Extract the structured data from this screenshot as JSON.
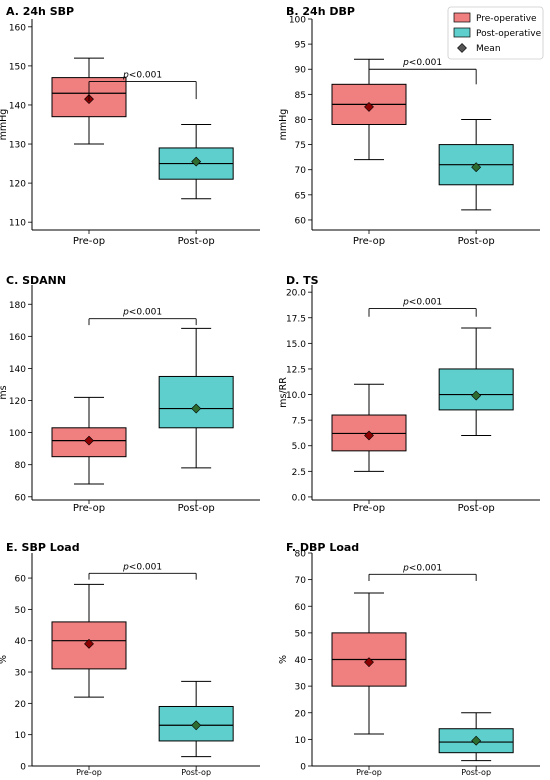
{
  "colors": {
    "pre": "#F08080",
    "post": "#5ECFCC",
    "pre_mean": "#8B0000",
    "post_mean": "#2E6B2E",
    "legend_mean": "#555555",
    "axis": "#000000"
  },
  "legend": {
    "items": [
      {
        "label": "Pre-operative"
      },
      {
        "label": "Post-operative"
      },
      {
        "label": "Mean"
      }
    ]
  },
  "chart_data": [
    {
      "panel": "A",
      "title": "A. 24h SBP",
      "type": "box",
      "ylabel": "mmHg",
      "ylim": [
        108,
        162
      ],
      "yticks": [
        110,
        120,
        130,
        140,
        150,
        160
      ],
      "ytick_labels": [
        "110",
        "120",
        "130",
        "140",
        "150",
        "160"
      ],
      "categories": [
        "Pre-op",
        "Post-op"
      ],
      "series": [
        {
          "name": "Pre-operative",
          "whisker_low": 130,
          "q1": 137,
          "median": 143,
          "q3": 147,
          "whisker_high": 152,
          "mean": 141.5
        },
        {
          "name": "Post-operative",
          "whisker_low": 116,
          "q1": 121,
          "median": 125,
          "q3": 129,
          "whisker_high": 135,
          "mean": 125.5
        }
      ],
      "annotation": {
        "prefix": "p",
        "text": "<0.001",
        "bracket_y": 146,
        "tick_low": [
          141,
          141.5
        ]
      }
    },
    {
      "panel": "B",
      "title": "B. 24h DBP",
      "type": "box",
      "ylabel": "mmHg",
      "ylim": [
        58,
        100
      ],
      "yticks": [
        60,
        65,
        70,
        75,
        80,
        85,
        90,
        95,
        100
      ],
      "ytick_labels": [
        "60",
        "65",
        "70",
        "75",
        "80",
        "85",
        "90",
        "95",
        "100"
      ],
      "categories": [
        "Pre-op",
        "Post-op"
      ],
      "series": [
        {
          "name": "Pre-operative",
          "whisker_low": 72,
          "q1": 79,
          "median": 83,
          "q3": 87,
          "whisker_high": 92,
          "mean": 82.5
        },
        {
          "name": "Post-operative",
          "whisker_low": 62,
          "q1": 67,
          "median": 71,
          "q3": 75,
          "whisker_high": 80,
          "mean": 70.5
        }
      ],
      "annotation": {
        "prefix": "p",
        "text": "<0.001",
        "bracket_y": 90,
        "tick_low": [
          88,
          87
        ]
      }
    },
    {
      "panel": "C",
      "title": "C. SDANN",
      "type": "box",
      "ylabel": "ms",
      "ylim": [
        58,
        192
      ],
      "yticks": [
        60,
        80,
        100,
        120,
        140,
        160,
        180
      ],
      "ytick_labels": [
        "60",
        "80",
        "100",
        "120",
        "140",
        "160",
        "180"
      ],
      "categories": [
        "Pre-op",
        "Post-op"
      ],
      "series": [
        {
          "name": "Pre-operative",
          "whisker_low": 68,
          "q1": 85,
          "median": 95,
          "q3": 103,
          "whisker_high": 122,
          "mean": 95
        },
        {
          "name": "Post-operative",
          "whisker_low": 78,
          "q1": 103,
          "median": 115,
          "q3": 135,
          "whisker_high": 165,
          "mean": 115
        }
      ],
      "annotation": {
        "prefix": "p",
        "text": "<0.001",
        "bracket_y": 171,
        "tick_low": [
          167,
          167
        ]
      }
    },
    {
      "panel": "D",
      "title": "D. TS",
      "type": "box",
      "ylabel": "ms/RR",
      "ylim": [
        -0.3,
        20.7
      ],
      "yticks": [
        0,
        2.5,
        5,
        7.5,
        10,
        12.5,
        15,
        17.5,
        20
      ],
      "ytick_labels": [
        "0.0",
        "2.5",
        "5.0",
        "7.5",
        "10.0",
        "12.5",
        "15.0",
        "17.5",
        "20.0"
      ],
      "categories": [
        "Pre-op",
        "Post-op"
      ],
      "series": [
        {
          "name": "Pre-operative",
          "whisker_low": 2.5,
          "q1": 4.5,
          "median": 6.2,
          "q3": 8,
          "whisker_high": 11,
          "mean": 6
        },
        {
          "name": "Post-operative",
          "whisker_low": 6,
          "q1": 8.5,
          "median": 10,
          "q3": 12.5,
          "whisker_high": 16.5,
          "mean": 9.9
        }
      ],
      "annotation": {
        "prefix": "p",
        "text": "<0.001",
        "bracket_y": 18.4,
        "tick_low": [
          17.6,
          17.6
        ]
      }
    },
    {
      "panel": "E",
      "title": "E. SBP Load",
      "type": "box",
      "ylabel": "%",
      "ylim": [
        0,
        68
      ],
      "yticks": [
        0,
        10,
        20,
        30,
        40,
        50,
        60
      ],
      "ytick_labels": [
        "0",
        "10",
        "20",
        "30",
        "40",
        "50",
        "60"
      ],
      "categories": [
        "Pre-op",
        "Post-op"
      ],
      "series": [
        {
          "name": "Pre-operative",
          "whisker_low": 22,
          "q1": 31,
          "median": 40,
          "q3": 46,
          "whisker_high": 58,
          "mean": 39
        },
        {
          "name": "Post-operative",
          "whisker_low": 3,
          "q1": 8,
          "median": 13,
          "q3": 19,
          "whisker_high": 27,
          "mean": 13
        }
      ],
      "annotation": {
        "prefix": "p",
        "text": "<0.001",
        "bracket_y": 61.5,
        "tick_low": [
          59.5,
          59.5
        ]
      }
    },
    {
      "panel": "F",
      "title": "F. DBP Load",
      "type": "box",
      "ylabel": "%",
      "ylim": [
        0,
        80
      ],
      "yticks": [
        0,
        10,
        20,
        30,
        40,
        50,
        60,
        70,
        80
      ],
      "ytick_labels": [
        "0",
        "10",
        "20",
        "30",
        "40",
        "50",
        "60",
        "70",
        "80"
      ],
      "categories": [
        "Pre-op",
        "Post-op"
      ],
      "series": [
        {
          "name": "Pre-operative",
          "whisker_low": 12,
          "q1": 30,
          "median": 40,
          "q3": 50,
          "whisker_high": 65,
          "mean": 39
        },
        {
          "name": "Post-operative",
          "whisker_low": 2,
          "q1": 5,
          "median": 9,
          "q3": 14,
          "whisker_high": 20,
          "mean": 9.5
        }
      ],
      "annotation": {
        "prefix": "p",
        "text": "<0.001",
        "bracket_y": 72,
        "tick_low": [
          69.5,
          69.5
        ]
      }
    }
  ]
}
